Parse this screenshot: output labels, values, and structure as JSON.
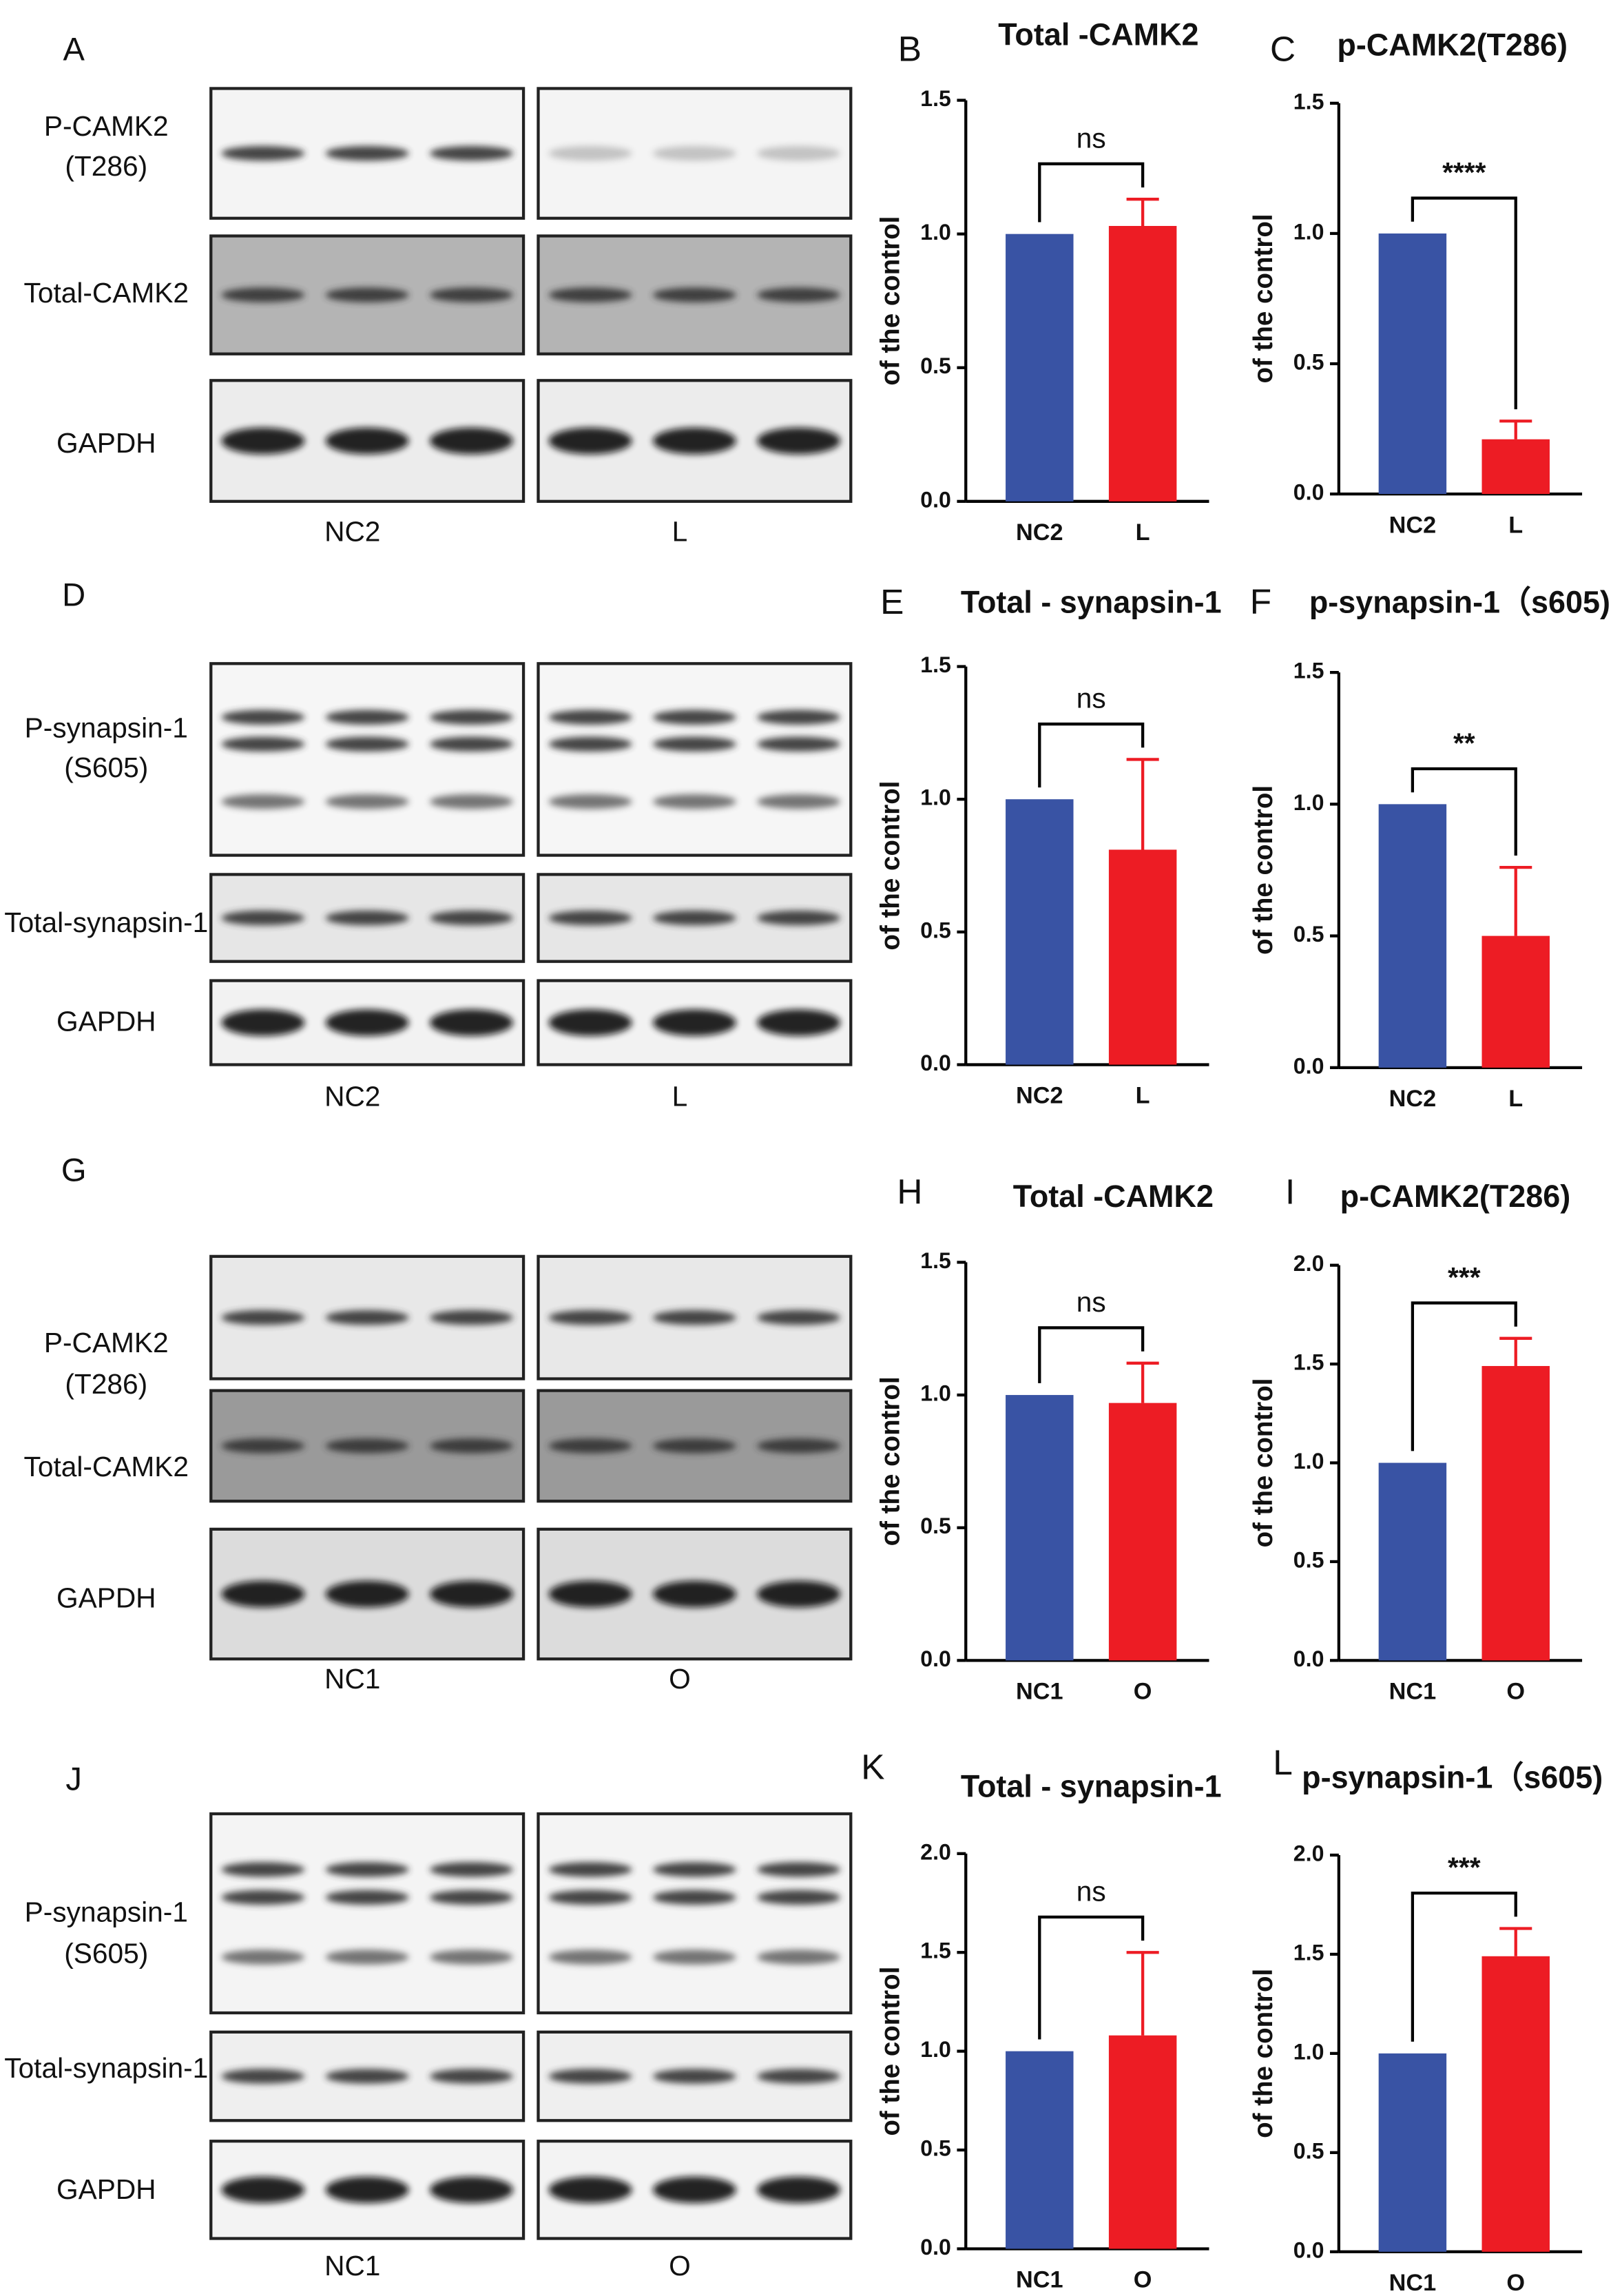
{
  "blots": [
    {
      "panel": "A",
      "rows": [
        [
          "P-CAMK2",
          "(T286)"
        ],
        [
          "Total-CAMK2"
        ],
        [
          "GAPDH"
        ]
      ],
      "groups": [
        "NC2",
        "L"
      ]
    },
    {
      "panel": "D",
      "rows": [
        [
          "P-synapsin-1",
          "(S605)"
        ],
        [
          "Total-synapsin-1"
        ],
        [
          "GAPDH"
        ]
      ],
      "groups": [
        "NC2",
        "L"
      ]
    },
    {
      "panel": "G",
      "rows": [
        [
          "P-CAMK2",
          "(T286)"
        ],
        [
          "Total-CAMK2"
        ],
        [
          "GAPDH"
        ]
      ],
      "groups": [
        "NC1",
        "O"
      ]
    },
    {
      "panel": "J",
      "rows": [
        [
          "P-synapsin-1",
          "(S605)"
        ],
        [
          "Total-synapsin-1"
        ],
        [
          "GAPDH"
        ]
      ],
      "groups": [
        "NC1",
        "O"
      ]
    }
  ],
  "chart_data": [
    {
      "type": "bar",
      "panel": "B",
      "title": "Total -CAMK2",
      "ylabel": "of the control",
      "categories": [
        "NC2",
        "L"
      ],
      "values": [
        1.0,
        1.03
      ],
      "errors": [
        null,
        0.1
      ],
      "colors": [
        "#3953a4",
        "#ed1c24"
      ],
      "annotation": "ns",
      "ylim": [
        0,
        1.5
      ],
      "yticks": [
        {
          "value": 0,
          "label": "0.0"
        },
        0.5,
        {
          "value": 1,
          "label": "1.0"
        },
        1.5
      ]
    },
    {
      "type": "bar",
      "panel": "C",
      "title": "p-CAMK2(T286)",
      "ylabel": "of the control",
      "categories": [
        "NC2",
        "L"
      ],
      "values": [
        1.0,
        0.21
      ],
      "errors": [
        null,
        0.07
      ],
      "colors": [
        "#3953a4",
        "#ed1c24"
      ],
      "annotation": "****",
      "ylim": [
        0,
        1.5
      ],
      "yticks": [
        {
          "value": 0,
          "label": "0.0"
        },
        0.5,
        {
          "value": 1,
          "label": "1.0"
        },
        1.5
      ]
    },
    {
      "type": "bar",
      "panel": "E",
      "title": "Total - synapsin-1",
      "ylabel": "of the control",
      "categories": [
        "NC2",
        "L"
      ],
      "values": [
        1.0,
        0.81
      ],
      "errors": [
        null,
        0.34
      ],
      "colors": [
        "#3953a4",
        "#ed1c24"
      ],
      "annotation": "ns",
      "ylim": [
        0,
        1.5
      ],
      "yticks": [
        {
          "value": 0,
          "label": "0.0"
        },
        0.5,
        {
          "value": 1,
          "label": "1.0"
        },
        1.5
      ]
    },
    {
      "type": "bar",
      "panel": "F",
      "title": "p-synapsin-1（s605)",
      "ylabel": "of the control",
      "categories": [
        "NC2",
        "L"
      ],
      "values": [
        1.0,
        0.5
      ],
      "errors": [
        null,
        0.26
      ],
      "colors": [
        "#3953a4",
        "#ed1c24"
      ],
      "annotation": "**",
      "ylim": [
        0,
        1.5
      ],
      "yticks": [
        {
          "value": 0,
          "label": "0.0"
        },
        0.5,
        {
          "value": 1,
          "label": "1.0"
        },
        1.5
      ]
    },
    {
      "type": "bar",
      "panel": "H",
      "title": "Total -CAMK2",
      "ylabel": "of the control",
      "categories": [
        "NC1",
        "O"
      ],
      "values": [
        1.0,
        0.97
      ],
      "errors": [
        null,
        0.15
      ],
      "colors": [
        "#3953a4",
        "#ed1c24"
      ],
      "annotation": "ns",
      "ylim": [
        0,
        1.5
      ],
      "yticks": [
        {
          "value": 0,
          "label": "0.0"
        },
        0.5,
        {
          "value": 1,
          "label": "1.0"
        },
        1.5
      ]
    },
    {
      "type": "bar",
      "panel": "I",
      "title": "p-CAMK2(T286)",
      "ylabel": "of the control",
      "categories": [
        "NC1",
        "O"
      ],
      "values": [
        1.0,
        1.49
      ],
      "errors": [
        null,
        0.14
      ],
      "colors": [
        "#3953a4",
        "#ed1c24"
      ],
      "annotation": "***",
      "ylim": [
        0,
        2
      ],
      "yticks": [
        {
          "value": 0,
          "label": "0.0"
        },
        0.5,
        {
          "value": 1,
          "label": "1.0"
        },
        1.5,
        {
          "value": 2,
          "label": "2.0"
        }
      ]
    },
    {
      "type": "bar",
      "panel": "K",
      "title": "Total - synapsin-1",
      "ylabel": "of the control",
      "categories": [
        "NC1",
        "O"
      ],
      "values": [
        1.0,
        1.08
      ],
      "errors": [
        null,
        0.42
      ],
      "colors": [
        "#3953a4",
        "#ed1c24"
      ],
      "annotation": "ns",
      "ylim": [
        0,
        2
      ],
      "yticks": [
        {
          "value": 0,
          "label": "0.0"
        },
        0.5,
        {
          "value": 1,
          "label": "1.0"
        },
        1.5,
        {
          "value": 2,
          "label": "2.0"
        }
      ]
    },
    {
      "type": "bar",
      "panel": "L",
      "title": "p-synapsin-1（s605)",
      "ylabel": "of the control",
      "categories": [
        "NC1",
        "O"
      ],
      "values": [
        1.0,
        1.49
      ],
      "errors": [
        null,
        0.14
      ],
      "colors": [
        "#3953a4",
        "#ed1c24"
      ],
      "annotation": "***",
      "ylim": [
        0,
        2
      ],
      "yticks": [
        {
          "value": 0,
          "label": "0.0"
        },
        0.5,
        {
          "value": 1,
          "label": "1.0"
        },
        1.5,
        {
          "value": 2,
          "label": "2.0"
        }
      ]
    }
  ]
}
